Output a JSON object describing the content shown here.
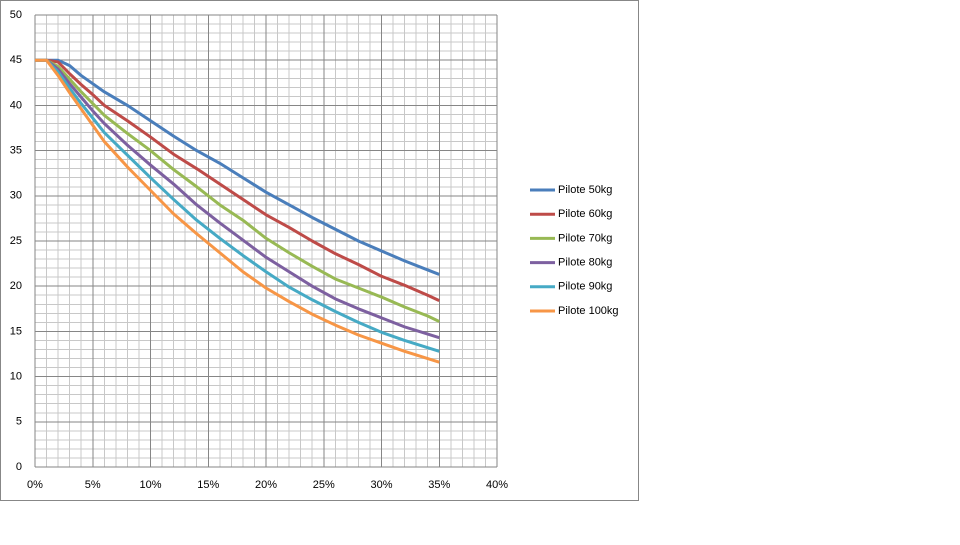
{
  "chart_data": {
    "type": "line",
    "x": [
      0,
      1,
      2,
      3,
      4,
      5,
      6,
      8,
      10,
      12,
      14,
      16,
      18,
      20,
      22,
      24,
      26,
      28,
      30,
      32,
      34,
      35
    ],
    "series": [
      {
        "name": "Pilote 50kg",
        "color": "#4a7ebb",
        "values": [
          45,
          45,
          45,
          44.4,
          43.3,
          42.4,
          41.5,
          40.0,
          38.3,
          36.6,
          35.0,
          33.6,
          32.0,
          30.4,
          29.0,
          27.6,
          26.3,
          25.0,
          23.9,
          22.8,
          21.8,
          21.3
        ]
      },
      {
        "name": "Pilote 60kg",
        "color": "#be4b48",
        "values": [
          45,
          45,
          44.8,
          43.5,
          42.3,
          41.2,
          40.0,
          38.3,
          36.5,
          34.6,
          33.0,
          31.3,
          29.6,
          27.9,
          26.5,
          25.0,
          23.6,
          22.4,
          21.1,
          20.1,
          19.0,
          18.4
        ]
      },
      {
        "name": "Pilote 70kg",
        "color": "#98b954",
        "values": [
          45,
          45,
          44.3,
          42.9,
          41.5,
          40.2,
          38.9,
          36.9,
          35.0,
          32.9,
          31.0,
          29.0,
          27.3,
          25.3,
          23.7,
          22.2,
          20.8,
          19.8,
          18.8,
          17.7,
          16.7,
          16.1
        ]
      },
      {
        "name": "Pilote 80kg",
        "color": "#7d60a0",
        "values": [
          45,
          45,
          44.0,
          42.4,
          40.9,
          39.4,
          38.0,
          35.6,
          33.4,
          31.3,
          29.0,
          27.0,
          25.1,
          23.2,
          21.6,
          20.0,
          18.6,
          17.5,
          16.5,
          15.5,
          14.7,
          14.3
        ]
      },
      {
        "name": "Pilote 90kg",
        "color": "#46aac5",
        "values": [
          45,
          45,
          43.7,
          41.9,
          40.2,
          38.6,
          37.0,
          34.5,
          32.0,
          29.6,
          27.3,
          25.3,
          23.4,
          21.6,
          19.9,
          18.5,
          17.2,
          16.0,
          14.9,
          14.0,
          13.2,
          12.8
        ]
      },
      {
        "name": "Pilote 100kg",
        "color": "#f79646",
        "values": [
          45,
          45,
          43.3,
          41.4,
          39.6,
          37.8,
          36.0,
          33.2,
          30.6,
          28.0,
          25.8,
          23.7,
          21.6,
          19.8,
          18.3,
          16.9,
          15.7,
          14.6,
          13.7,
          12.8,
          12.0,
          11.6
        ]
      }
    ],
    "xlim": [
      0,
      40
    ],
    "xticks": [
      {
        "value": 0,
        "label": "0%"
      },
      {
        "value": 5,
        "label": "5%"
      },
      {
        "value": 10,
        "label": "10%"
      },
      {
        "value": 15,
        "label": "15%"
      },
      {
        "value": 20,
        "label": "20%"
      },
      {
        "value": 25,
        "label": "25%"
      },
      {
        "value": 30,
        "label": "30%"
      },
      {
        "value": 35,
        "label": "35%"
      },
      {
        "value": 40,
        "label": "40%"
      }
    ],
    "ylim": [
      0,
      50
    ],
    "yticks": [
      0,
      5,
      10,
      15,
      20,
      25,
      30,
      35,
      40,
      45,
      50
    ],
    "grid": true,
    "minor_grid": {
      "x": 1,
      "y": 1
    },
    "legend": "right"
  }
}
